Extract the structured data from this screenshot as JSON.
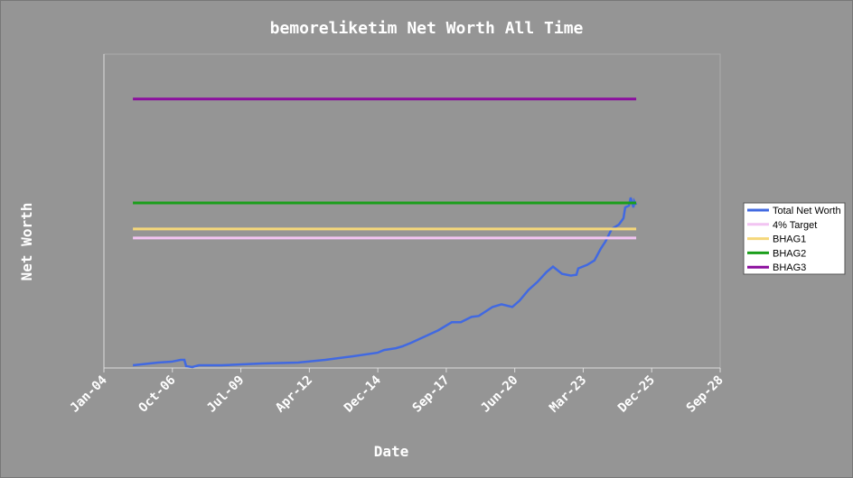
{
  "chart_data": {
    "type": "line",
    "title": "bemoreliketim Net Worth All Time",
    "x_label": "Date",
    "y_label": "Net Worth",
    "xlim": [
      2004,
      2028.66
    ],
    "ylim": [
      0,
      3500000
    ],
    "xticks": [
      {
        "value": 2004.0,
        "label": "Jan-04"
      },
      {
        "value": 2006.74,
        "label": "Oct-06"
      },
      {
        "value": 2009.48,
        "label": "Jul-09"
      },
      {
        "value": 2012.22,
        "label": "Apr-12"
      },
      {
        "value": 2014.96,
        "label": "Dec-14"
      },
      {
        "value": 2017.7,
        "label": "Sep-17"
      },
      {
        "value": 2020.44,
        "label": "Jun-20"
      },
      {
        "value": 2023.18,
        "label": "Mar-23"
      },
      {
        "value": 2025.92,
        "label": "Dec-25"
      },
      {
        "value": 2028.66,
        "label": "Sep-28"
      }
    ],
    "legend": "right",
    "series": [
      {
        "name": "Total Net Worth",
        "color": "#4169e1",
        "x": [
          2005.16,
          2006.17,
          2006.71,
          2007.07,
          2007.22,
          2007.29,
          2007.54,
          2007.8,
          2008.7,
          2010.33,
          2011.77,
          2012.86,
          2013.94,
          2014.95,
          2015.21,
          2015.68,
          2015.93,
          2016.29,
          2016.83,
          2017.38,
          2017.92,
          2018.28,
          2018.71,
          2019.0,
          2019.55,
          2019.91,
          2020.34,
          2020.63,
          2020.99,
          2021.35,
          2021.71,
          2021.97,
          2022.33,
          2022.69,
          2022.91,
          2022.98,
          2023.34,
          2023.63,
          2023.88,
          2024.07,
          2024.32,
          2024.61,
          2024.79,
          2024.86,
          2025.01,
          2025.08,
          2025.19,
          2025.22,
          2025.3
        ],
        "values": [
          30000,
          60000,
          70000,
          90000,
          90000,
          20000,
          10000,
          30000,
          30000,
          50000,
          60000,
          90000,
          130000,
          170000,
          200000,
          220000,
          240000,
          280000,
          350000,
          420000,
          510000,
          510000,
          570000,
          580000,
          680000,
          710000,
          680000,
          750000,
          870000,
          960000,
          1070000,
          1130000,
          1050000,
          1030000,
          1040000,
          1110000,
          1150000,
          1200000,
          1330000,
          1410000,
          1550000,
          1600000,
          1670000,
          1790000,
          1810000,
          1900000,
          1790000,
          1860000,
          1820000
        ]
      },
      {
        "name": "4% Target",
        "color": "#f2c4f2",
        "x": [
          2005.16,
          2025.3
        ],
        "values": [
          1450000,
          1450000
        ]
      },
      {
        "name": "BHAG1",
        "color": "#f5d77a",
        "x": [
          2005.16,
          2025.3
        ],
        "values": [
          1550000,
          1550000
        ]
      },
      {
        "name": "BHAG2",
        "color": "#1a9e1a",
        "x": [
          2005.16,
          2025.3
        ],
        "values": [
          1840000,
          1840000
        ]
      },
      {
        "name": "BHAG3",
        "color": "#8b0f9e",
        "x": [
          2005.16,
          2025.3
        ],
        "values": [
          3000000,
          3000000
        ]
      }
    ]
  }
}
